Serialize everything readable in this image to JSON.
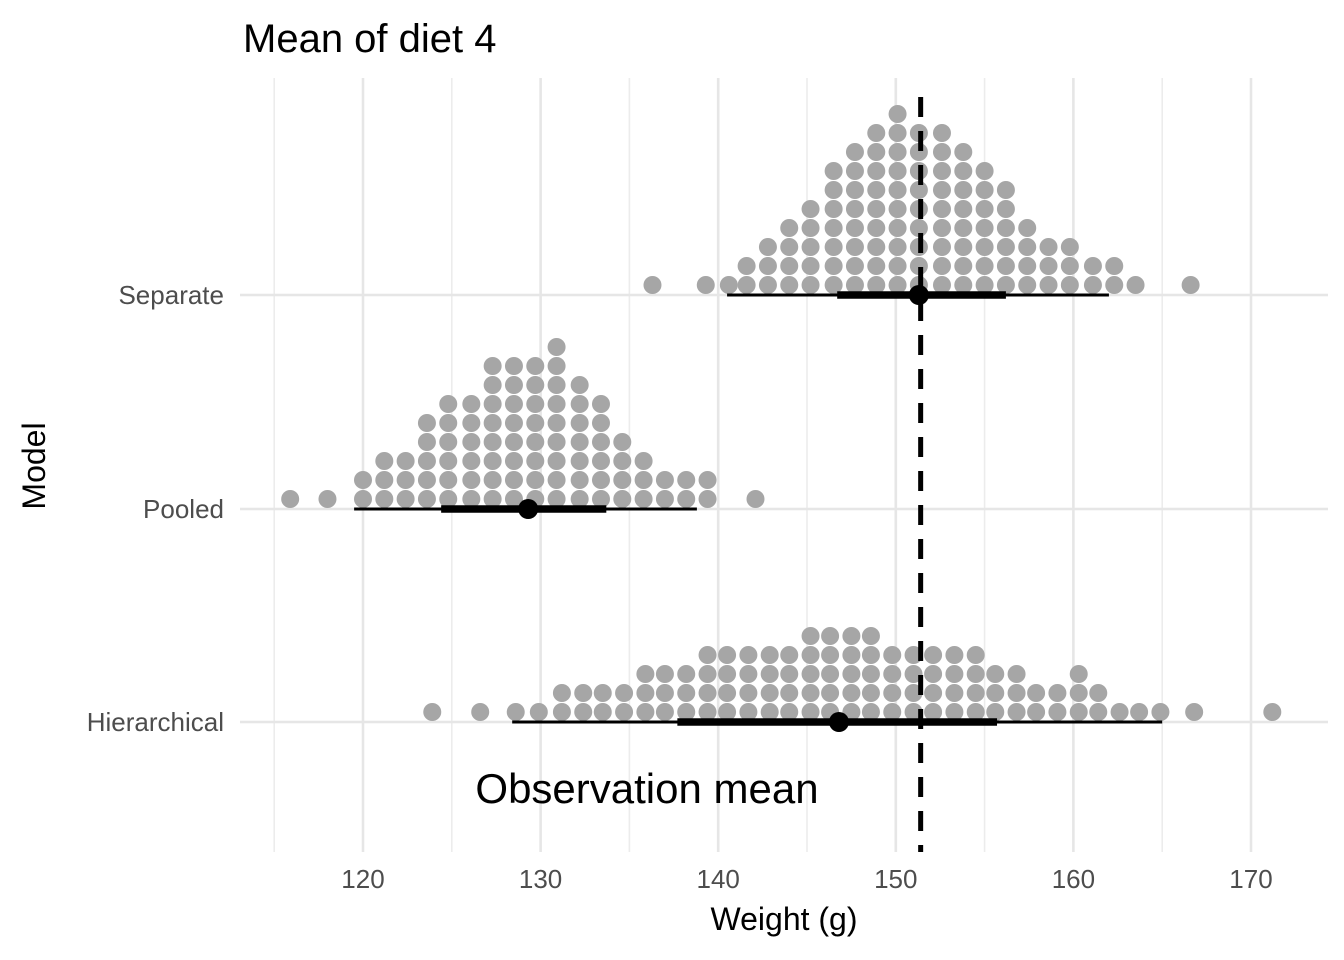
{
  "chart_data": {
    "type": "dotplot-interval",
    "title": "Mean of diet 4",
    "xlabel": "Weight (g)",
    "ylabel": "Model",
    "xlim": [
      114,
      173
    ],
    "x_ticks": [
      120,
      130,
      140,
      150,
      160,
      170
    ],
    "x_tick_labels": [
      "120",
      "130",
      "140",
      "150",
      "160",
      "170"
    ],
    "categories": [
      "Separate",
      "Pooled",
      "Hierarchical"
    ],
    "grid": true,
    "dot_color": "#a6a6a6",
    "interval_color": "#000000",
    "reference_line": {
      "x": 151.4,
      "style": "dashed",
      "label": "Observation mean"
    },
    "series": [
      {
        "name": "Separate",
        "point": 151.3,
        "inner_interval": [
          146.7,
          156.2
        ],
        "outer_interval": [
          140.5,
          162.0
        ],
        "dot_columns": [
          [
            136.3,
            1
          ],
          [
            139.3,
            1
          ],
          [
            140.6,
            1
          ],
          [
            141.6,
            2
          ],
          [
            142.8,
            3
          ],
          [
            144.0,
            4
          ],
          [
            145.2,
            5
          ],
          [
            146.5,
            7
          ],
          [
            147.7,
            8
          ],
          [
            148.9,
            9
          ],
          [
            150.1,
            10
          ],
          [
            151.3,
            9
          ],
          [
            152.6,
            9
          ],
          [
            153.8,
            8
          ],
          [
            155.0,
            7
          ],
          [
            156.2,
            6
          ],
          [
            157.4,
            4
          ],
          [
            158.6,
            3
          ],
          [
            159.8,
            3
          ],
          [
            161.1,
            2
          ],
          [
            162.3,
            2
          ],
          [
            163.5,
            1
          ],
          [
            166.6,
            1
          ]
        ]
      },
      {
        "name": "Pooled",
        "point": 129.3,
        "inner_interval": [
          124.4,
          133.7
        ],
        "outer_interval": [
          119.5,
          138.8
        ],
        "dot_columns": [
          [
            115.9,
            1
          ],
          [
            118.0,
            1
          ],
          [
            120.0,
            2
          ],
          [
            121.2,
            3
          ],
          [
            122.4,
            3
          ],
          [
            123.6,
            5
          ],
          [
            124.8,
            6
          ],
          [
            126.1,
            6
          ],
          [
            127.3,
            8
          ],
          [
            128.5,
            8
          ],
          [
            129.7,
            8
          ],
          [
            130.9,
            9
          ],
          [
            132.2,
            7
          ],
          [
            133.4,
            6
          ],
          [
            134.6,
            4
          ],
          [
            135.8,
            3
          ],
          [
            137.0,
            2
          ],
          [
            138.2,
            2
          ],
          [
            139.4,
            2
          ],
          [
            142.1,
            1
          ]
        ]
      },
      {
        "name": "Hierarchical",
        "point": 146.8,
        "inner_interval": [
          137.7,
          155.7
        ],
        "outer_interval": [
          128.4,
          165.0
        ],
        "dot_columns": [
          [
            123.9,
            1
          ],
          [
            126.6,
            1
          ],
          [
            128.6,
            1
          ],
          [
            129.9,
            1
          ],
          [
            131.2,
            2
          ],
          [
            132.4,
            2
          ],
          [
            133.5,
            2
          ],
          [
            134.7,
            2
          ],
          [
            135.9,
            3
          ],
          [
            137.0,
            3
          ],
          [
            138.2,
            3
          ],
          [
            139.4,
            4
          ],
          [
            140.5,
            4
          ],
          [
            141.7,
            4
          ],
          [
            142.9,
            4
          ],
          [
            144.0,
            4
          ],
          [
            145.2,
            5
          ],
          [
            146.3,
            5
          ],
          [
            147.5,
            5
          ],
          [
            148.6,
            5
          ],
          [
            149.8,
            4
          ],
          [
            151.0,
            4
          ],
          [
            152.1,
            4
          ],
          [
            153.3,
            4
          ],
          [
            154.5,
            4
          ],
          [
            155.6,
            3
          ],
          [
            156.8,
            3
          ],
          [
            157.9,
            2
          ],
          [
            159.1,
            2
          ],
          [
            160.3,
            3
          ],
          [
            161.4,
            2
          ],
          [
            162.6,
            1
          ],
          [
            163.7,
            1
          ],
          [
            164.9,
            1
          ],
          [
            166.8,
            1
          ],
          [
            171.2,
            1
          ]
        ]
      }
    ]
  }
}
